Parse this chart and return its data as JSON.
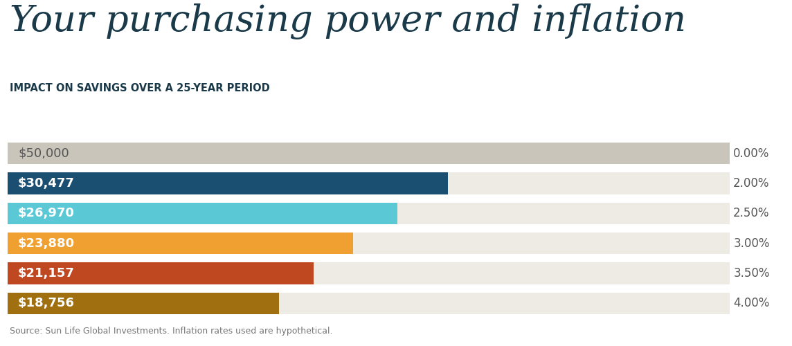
{
  "title": "Your purchasing power and inflation",
  "subtitle": "IMPACT ON SAVINGS OVER A 25-YEAR PERIOD",
  "source": "Source: Sun Life Global Investments. Inflation rates used are hypothetical.",
  "labels": [
    "$50,000",
    "$30,477",
    "$26,970",
    "$23,880",
    "$21,157",
    "$18,756"
  ],
  "rates": [
    "0.00%",
    "2.00%",
    "2.50%",
    "3.00%",
    "3.50%",
    "4.00%"
  ],
  "values": [
    50000,
    30477,
    26970,
    23880,
    21157,
    18756
  ],
  "max_value": 50000,
  "bar_colors": [
    "#c9c5bb",
    "#1b4f72",
    "#5bc8d5",
    "#f0a030",
    "#c04820",
    "#a07010"
  ],
  "background_color": "#eeeae4",
  "title_color": "#1a3a4a",
  "subtitle_color": "#1a3a4a",
  "label_colors": [
    "#555555",
    "#ffffff",
    "#ffffff",
    "#ffffff",
    "#ffffff",
    "#ffffff"
  ],
  "label_fontweights": [
    "normal",
    "bold",
    "bold",
    "bold",
    "bold",
    "bold"
  ],
  "rate_color": "#555555",
  "bar_height": 0.72,
  "fig_width": 11.44,
  "fig_height": 5.0
}
